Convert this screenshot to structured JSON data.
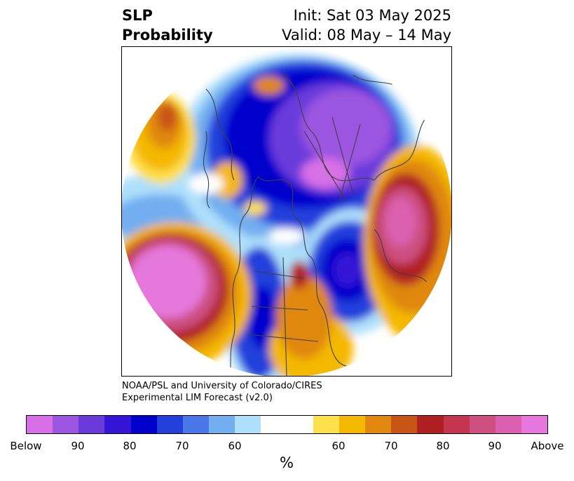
{
  "header": {
    "title_line1": "SLP",
    "title_line2": "Probability",
    "init_text": "Init: Sat 03 May 2025",
    "valid_text": "Valid: 08 May – 14 May"
  },
  "credit": {
    "line1": "NOAA/PSL and University of Colorado/CIRES",
    "line2": "Experimental LIM Forecast (v2.0)"
  },
  "colorbar": {
    "unit": "%",
    "colors": [
      "#d86fe6",
      "#9b55e0",
      "#6a3adb",
      "#3515d6",
      "#0000cc",
      "#2340db",
      "#4a78e8",
      "#72aef0",
      "#aee0fb",
      "#ffffff",
      "#ffffff",
      "#ffe04a",
      "#f4b800",
      "#e08810",
      "#c85515",
      "#b02020",
      "#c43550",
      "#cc4f80",
      "#dc60b0",
      "#e678dd"
    ],
    "tick_labels": [
      "Below",
      "90",
      "80",
      "70",
      "60",
      "60",
      "70",
      "80",
      "90",
      "Above"
    ]
  },
  "map": {
    "projection": "north-polar-stereographic",
    "colors": {
      "above_high": "#e678dd",
      "above_mid": "#cc4f80",
      "above_low": "#b02020",
      "above_orange": "#e08810",
      "above_yellow": "#f4b800",
      "above_light": "#ffe04a",
      "below_light": "#aee0fb",
      "below_sky": "#72aef0",
      "below_mid": "#2340db",
      "below_deep": "#0000cc",
      "below_purple": "#6a3adb",
      "below_violet": "#9b55e0",
      "below_high": "#d86fe6",
      "coast": "#404040"
    }
  }
}
